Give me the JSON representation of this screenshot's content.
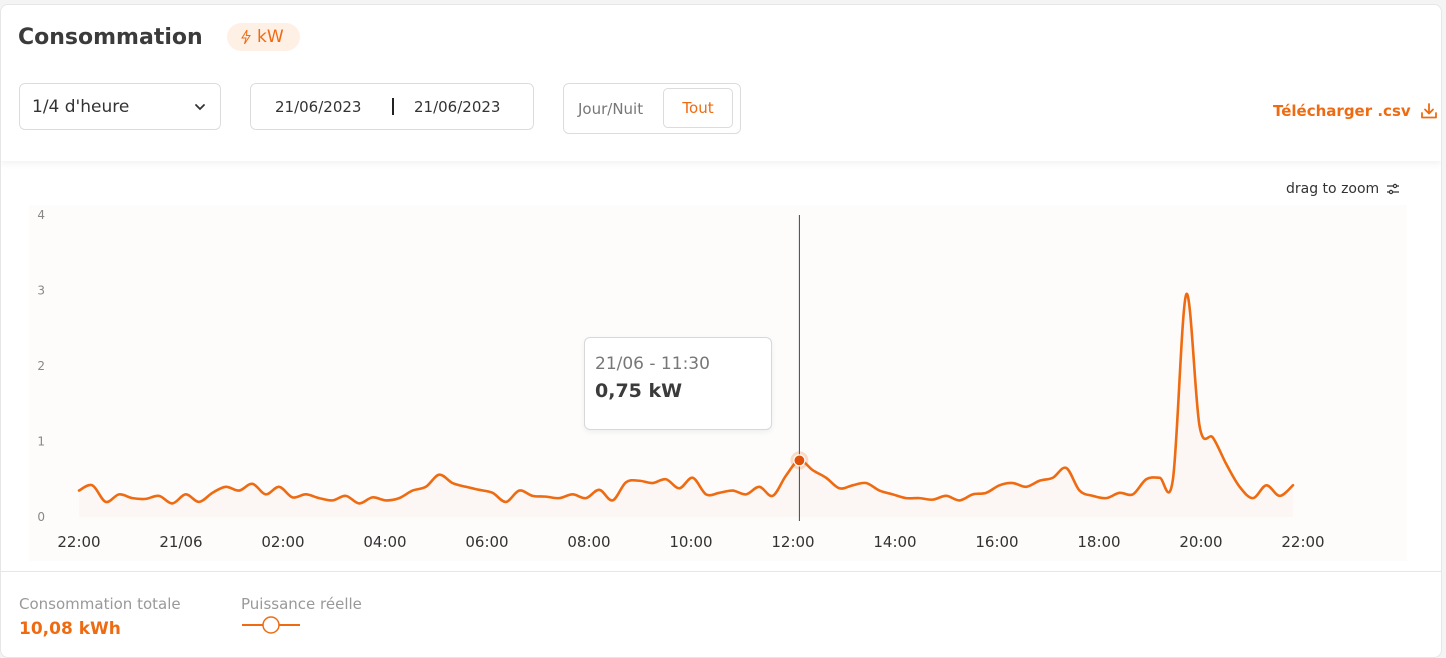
{
  "header": {
    "title": "Consommation",
    "unit_badge": "kW",
    "unit_icon": "bolt-icon"
  },
  "controls": {
    "granularity": "1/4 d'heure",
    "date_from": "21/06/2023",
    "date_to": "21/06/2023",
    "segment_options": [
      "Jour/Nuit",
      "Tout"
    ],
    "segment_selected": "Tout",
    "download_label": "Télécharger .csv",
    "zoom_hint": "drag to zoom"
  },
  "tooltip": {
    "time": "21/06 - 11:30",
    "value": "0,75 kW"
  },
  "footer": {
    "total_label": "Consommation totale",
    "total_value": "10,08 kWh",
    "legend_label": "Puissance réelle"
  },
  "colors": {
    "accent": "#ee6b12",
    "accent_soft": "#fff0e6",
    "line": "#ee6b12"
  },
  "chart_data": {
    "type": "line",
    "x_start_label": "22:00",
    "x_tick_labels": [
      "22:00",
      "21/06",
      "02:00",
      "04:00",
      "06:00",
      "08:00",
      "10:00",
      "12:00",
      "14:00",
      "16:00",
      "18:00",
      "20:00",
      "22:00"
    ],
    "y_tick_labels": [
      "0",
      "1",
      "2",
      "3",
      "4"
    ],
    "ylim": [
      0,
      4
    ],
    "grid": false,
    "series": [
      {
        "name": "Puissance réelle",
        "values": [
          0.35,
          0.42,
          0.2,
          0.3,
          0.25,
          0.24,
          0.28,
          0.18,
          0.3,
          0.2,
          0.32,
          0.4,
          0.35,
          0.44,
          0.3,
          0.4,
          0.26,
          0.3,
          0.25,
          0.22,
          0.28,
          0.18,
          0.26,
          0.22,
          0.25,
          0.35,
          0.4,
          0.56,
          0.45,
          0.4,
          0.36,
          0.32,
          0.2,
          0.35,
          0.28,
          0.27,
          0.25,
          0.3,
          0.25,
          0.36,
          0.22,
          0.46,
          0.48,
          0.45,
          0.5,
          0.38,
          0.52,
          0.3,
          0.32,
          0.35,
          0.3,
          0.4,
          0.28,
          0.55,
          0.75,
          0.62,
          0.52,
          0.38,
          0.42,
          0.45,
          0.35,
          0.3,
          0.25,
          0.25,
          0.23,
          0.28,
          0.22,
          0.3,
          0.32,
          0.42,
          0.45,
          0.4,
          0.48,
          0.52,
          0.65,
          0.35,
          0.28,
          0.25,
          0.32,
          0.3,
          0.5,
          0.52,
          0.5,
          2.95,
          1.2,
          1.05,
          0.7,
          0.4,
          0.25,
          0.42,
          0.28,
          0.42
        ]
      }
    ],
    "highlight": {
      "label": "21/06 - 11:30",
      "value": 0.75
    }
  }
}
